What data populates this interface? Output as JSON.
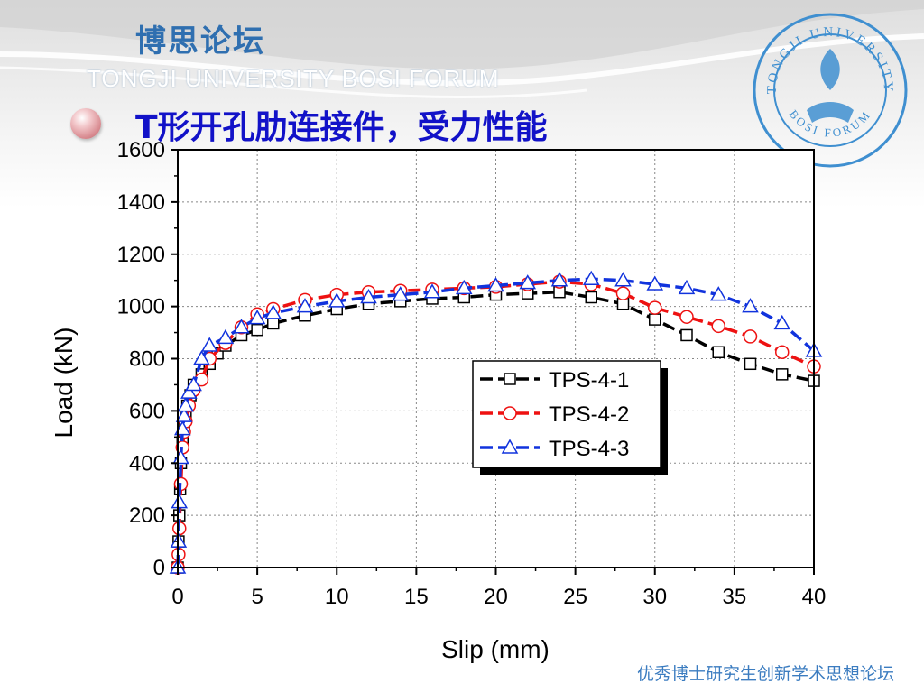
{
  "header": {
    "forum_cn": "博思论坛",
    "forum_en": "TONGJI UNIVERSITY BOSI FORUM",
    "slide_title": "T形开孔肋连接件，受力性能",
    "logo_top_text": "TONGJI UNIVERSITY",
    "logo_bottom_text": "BOSI FORUM"
  },
  "footer": {
    "text": "优秀博士研究生创新学术思想论坛"
  },
  "colors": {
    "title": "#1212c8",
    "forum": "#2f6fb0",
    "series1": "#000000",
    "series2": "#ee1111",
    "series3": "#1133dd"
  },
  "chart_data": {
    "type": "line",
    "xlabel": "Slip (mm)",
    "ylabel": "Load (kN)",
    "xlim": [
      0,
      40
    ],
    "ylim": [
      0,
      1600
    ],
    "xticks": [
      0,
      5,
      10,
      15,
      20,
      25,
      30,
      35,
      40
    ],
    "yticks": [
      0,
      200,
      400,
      600,
      800,
      1000,
      1200,
      1400,
      1600
    ],
    "grid": true,
    "legend_position": "center-right",
    "series": [
      {
        "name": "TPS-4-1",
        "marker": "square",
        "color": "#000000",
        "x": [
          0,
          0.05,
          0.1,
          0.15,
          0.2,
          0.3,
          0.4,
          0.5,
          0.6,
          0.8,
          1.0,
          1.5,
          2,
          2.5,
          3,
          4,
          5,
          6,
          8,
          10,
          12,
          14,
          16,
          18,
          20,
          22,
          24,
          26,
          28,
          30,
          32,
          34,
          36,
          38,
          40
        ],
        "y": [
          0,
          100,
          200,
          300,
          400,
          480,
          540,
          580,
          620,
          660,
          700,
          740,
          780,
          820,
          850,
          890,
          910,
          935,
          965,
          990,
          1010,
          1020,
          1030,
          1035,
          1045,
          1050,
          1055,
          1035,
          1010,
          950,
          890,
          825,
          780,
          740,
          715
        ]
      },
      {
        "name": "TPS-4-2",
        "marker": "circle",
        "color": "#ee1111",
        "x": [
          0,
          0.05,
          0.1,
          0.2,
          0.3,
          0.4,
          0.5,
          0.7,
          1.0,
          1.5,
          2,
          3,
          4,
          5,
          6,
          8,
          10,
          12,
          14,
          16,
          18,
          20,
          22,
          24,
          26,
          28,
          30,
          32,
          34,
          36,
          38,
          40
        ],
        "y": [
          0,
          50,
          150,
          320,
          460,
          520,
          560,
          620,
          680,
          720,
          800,
          860,
          920,
          970,
          990,
          1025,
          1045,
          1055,
          1060,
          1065,
          1070,
          1075,
          1085,
          1095,
          1085,
          1050,
          995,
          960,
          925,
          885,
          825,
          770
        ]
      },
      {
        "name": "TPS-4-3",
        "marker": "triangle",
        "color": "#1133dd",
        "x": [
          0,
          0.05,
          0.1,
          0.2,
          0.3,
          0.4,
          0.5,
          0.7,
          1.0,
          1.5,
          2,
          3,
          4,
          5,
          6,
          8,
          10,
          12,
          14,
          16,
          18,
          20,
          22,
          24,
          26,
          28,
          30,
          32,
          34,
          36,
          38,
          40
        ],
        "y": [
          0,
          100,
          250,
          420,
          530,
          580,
          620,
          670,
          700,
          800,
          850,
          880,
          920,
          955,
          975,
          1000,
          1020,
          1035,
          1045,
          1055,
          1070,
          1080,
          1090,
          1100,
          1105,
          1100,
          1085,
          1070,
          1045,
          1000,
          935,
          830
        ]
      }
    ]
  }
}
